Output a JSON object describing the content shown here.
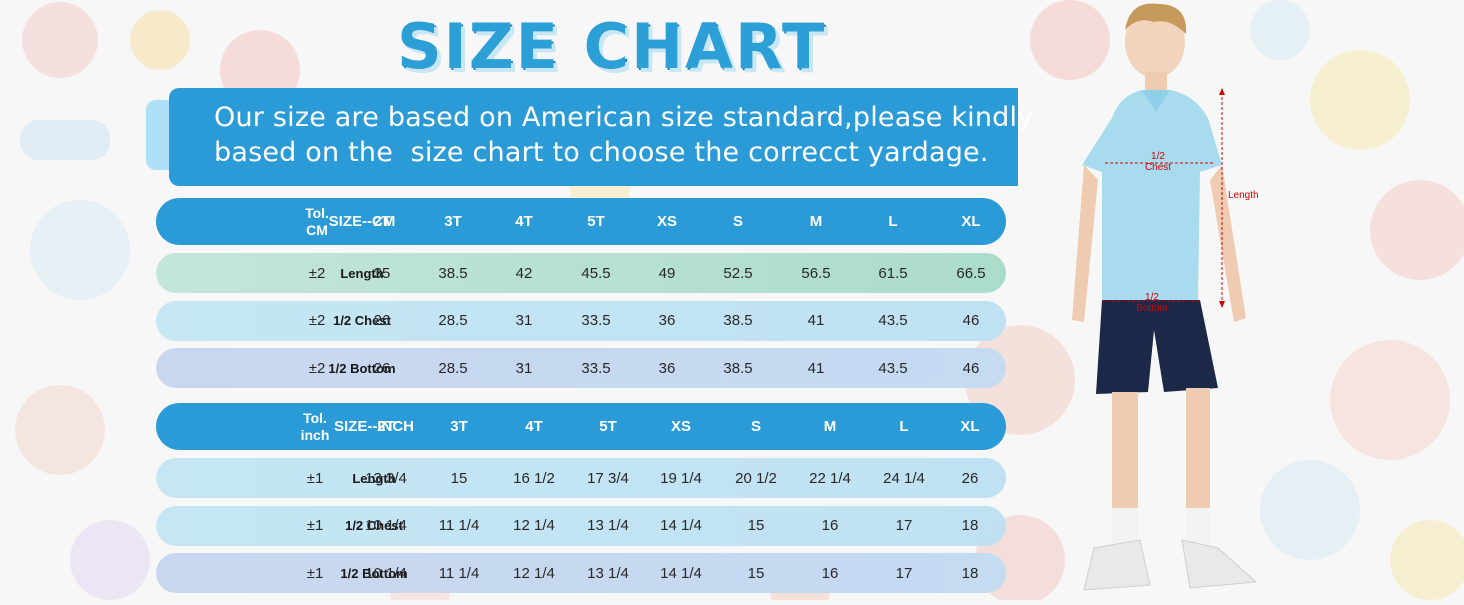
{
  "title": "SIZE CHART",
  "banner": {
    "line1": "Our size are based on American size standard,please kindly",
    "line2": "based on the  size chart to choose the correcct yardage."
  },
  "cm_table": {
    "header": [
      "SIZE--CM",
      "Tol.\nCM",
      "2T",
      "3T",
      "4T",
      "5T",
      "XS",
      "S",
      "M",
      "L",
      "XL"
    ],
    "rows": [
      [
        "Length",
        "±2",
        "35",
        "38.5",
        "42",
        "45.5",
        "49",
        "52.5",
        "56.5",
        "61.5",
        "66.5"
      ],
      [
        "1/2 Chest",
        "±2",
        "26",
        "28.5",
        "31",
        "33.5",
        "36",
        "38.5",
        "41",
        "43.5",
        "46"
      ],
      [
        "1/2 Bottom",
        "±2",
        "26",
        "28.5",
        "31",
        "33.5",
        "36",
        "38.5",
        "41",
        "43.5",
        "46"
      ]
    ]
  },
  "inch_table": {
    "header": [
      "SIZE--INCH",
      "Tol.\ninch",
      "2T",
      "3T",
      "4T",
      "5T",
      "XS",
      "S",
      "M",
      "L",
      "XL"
    ],
    "rows": [
      [
        "Length",
        "±1",
        "13 3/4",
        "15",
        "16 1/2",
        "17 3/4",
        "19 1/4",
        "20 1/2",
        "22 1/4",
        "24 1/4",
        "26"
      ],
      [
        "1/2 Chest",
        "±1",
        "10 1/4",
        "11 1/4",
        "12 1/4",
        "13 1/4",
        "14 1/4",
        "15",
        "16",
        "17",
        "18"
      ],
      [
        "1/2 Bottom",
        "±1",
        "10 1/4",
        "11 1/4",
        "12 1/4",
        "13 1/4",
        "14 1/4",
        "15",
        "16",
        "17",
        "18"
      ]
    ]
  },
  "figure_labels": {
    "chest": "1/2\nChest",
    "length": "Length",
    "bottom": "1/2\nBottom"
  },
  "colors": {
    "accent": "#2a9bd6",
    "row": "#c4e6f4",
    "measure": "#d40000"
  }
}
